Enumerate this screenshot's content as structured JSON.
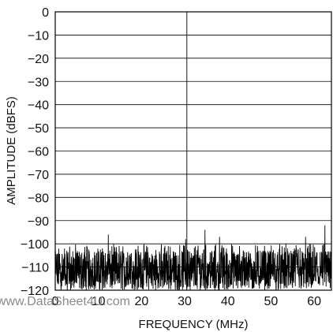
{
  "chart_data": {
    "type": "line",
    "title": "",
    "xlabel": "FREQUENCY (MHz)",
    "ylabel": "AMPLITUDE (dBFS)",
    "xlim": [
      0,
      64
    ],
    "ylim": [
      -120,
      0
    ],
    "xticks": [
      0,
      10,
      20,
      30,
      40,
      50,
      60
    ],
    "yticks": [
      0,
      -10,
      -20,
      -30,
      -40,
      -50,
      -60,
      -70,
      -80,
      -90,
      -100,
      -110,
      -120
    ],
    "xtick_labels": [
      "0",
      "10",
      "20",
      "30",
      "40",
      "50",
      "60"
    ],
    "ytick_labels": [
      "0",
      "−10",
      "−20",
      "−30",
      "−40",
      "−50",
      "−60",
      "−70",
      "−80",
      "−90",
      "−100",
      "−110",
      "−120"
    ],
    "grid": "horizontal",
    "legend": "none",
    "series": [
      {
        "description": "FFT noise floor with fundamental tone",
        "fundamental": {
          "x": 30.5,
          "y": 0
        },
        "noise_floor_band": [
          -120,
          -100
        ],
        "spurs": [
          {
            "x": 12.3,
            "y": -96
          },
          {
            "x": 30.2,
            "y": -98
          },
          {
            "x": 34.7,
            "y": -94
          },
          {
            "x": 38.1,
            "y": -97
          },
          {
            "x": 58.0,
            "y": -97
          },
          {
            "x": 62.5,
            "y": -92
          }
        ]
      }
    ],
    "line_color": "#000000"
  },
  "watermark": "www.DataSheet4U.com"
}
